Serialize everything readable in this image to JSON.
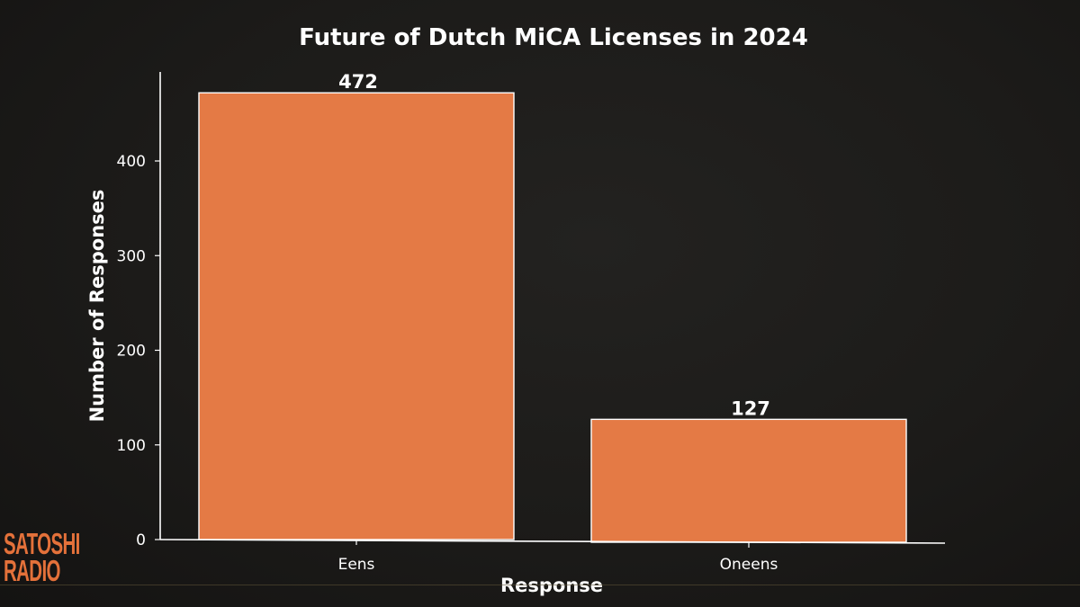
{
  "chart_data": {
    "type": "bar",
    "title": "Future of Dutch MiCA Licenses in 2024",
    "xlabel": "Response",
    "ylabel": "Number of Responses",
    "categories": [
      "Eens",
      "Oneens"
    ],
    "values": [
      472,
      127
    ],
    "value_labels": [
      "472",
      "127"
    ],
    "ylim": [
      0,
      500
    ],
    "yticks": [
      0,
      100,
      200,
      300,
      400
    ],
    "ytick_labels": [
      "0",
      "100",
      "200",
      "300",
      "400"
    ],
    "grid": false,
    "bar_color": "#e47a45",
    "bar_edge_color": "#ffffff",
    "background_color": "#1c1b19"
  },
  "logo": {
    "line1": "SATOSHI",
    "line2": "RADIO",
    "color": "#e4713a"
  }
}
